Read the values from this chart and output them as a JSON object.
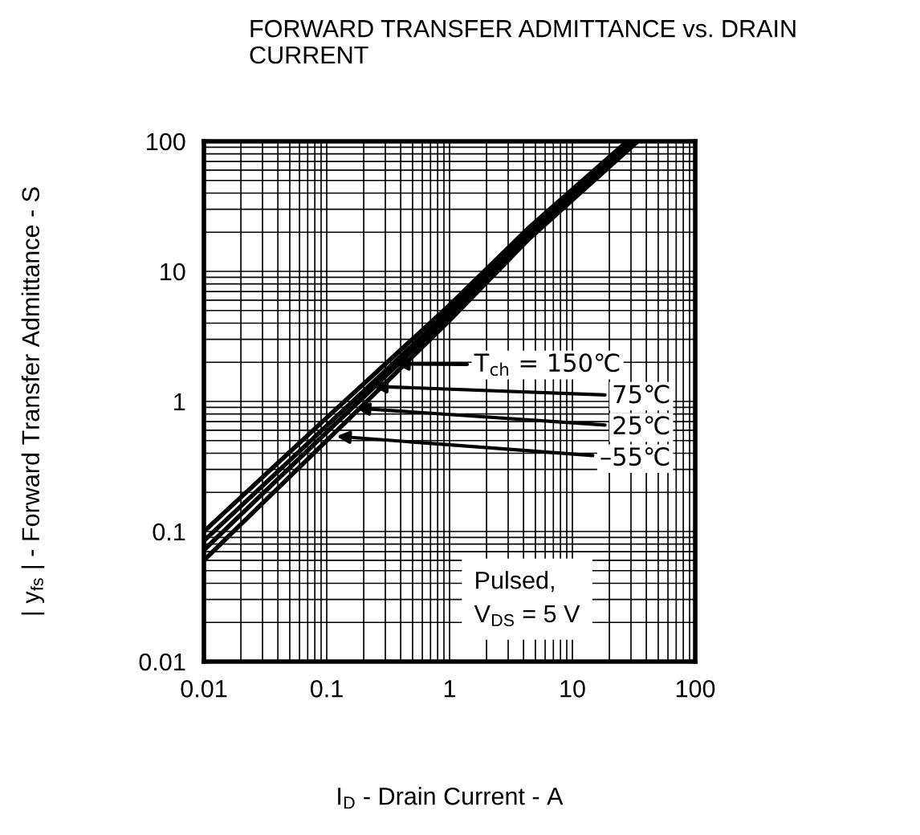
{
  "chart_data": {
    "type": "line",
    "title": "FORWARD TRANSFER ADMITTANCE vs. DRAIN CURRENT",
    "xlabel": "I$_{D}$ - Drain Current - A",
    "ylabel": "| y$_{fs}$ | - Forward Transfer Admittance - S",
    "log": "xy",
    "grid": true,
    "xlim": [
      0.01,
      100
    ],
    "ylim": [
      0.01,
      100
    ],
    "xticks": [
      0.01,
      0.1,
      1,
      10,
      100
    ],
    "yticks": [
      0.01,
      0.1,
      1,
      10,
      100
    ],
    "line_style": "solid",
    "marker": "none",
    "series": [
      {
        "color": "#000000",
        "x": [
          0.01,
          0.1,
          1,
          4.5,
          28
        ],
        "values": [
          0.1,
          0.75,
          5.5,
          22,
          100
        ]
      },
      {
        "color": "#000000",
        "x": [
          0.01,
          0.1,
          1,
          4.5,
          30
        ],
        "values": [
          0.085,
          0.65,
          5,
          20,
          100
        ]
      },
      {
        "color": "#000000",
        "x": [
          0.01,
          0.1,
          1,
          4.5,
          32
        ],
        "values": [
          0.072,
          0.58,
          4.6,
          19,
          100
        ]
      },
      {
        "color": "#000000",
        "x": [
          0.01,
          0.1,
          1,
          4.5,
          34
        ],
        "values": [
          0.06,
          0.5,
          4.2,
          18,
          100
        ]
      }
    ],
    "annotations": [
      "T$_{ch}$ = 150℃",
      "75℃",
      "25℃",
      "–55℃",
      "Pulsed,\nV$_{DS}$ = 5 V"
    ]
  }
}
